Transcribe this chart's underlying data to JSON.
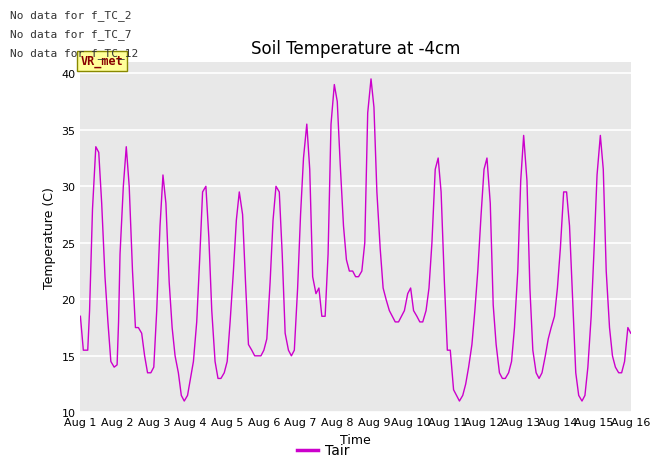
{
  "title": "Soil Temperature at -4cm",
  "xlabel": "Time",
  "ylabel": "Temperature (C)",
  "ylim": [
    10,
    41
  ],
  "yticks": [
    10,
    15,
    20,
    25,
    30,
    35,
    40
  ],
  "xlim": [
    0,
    15
  ],
  "xtick_labels": [
    "Aug 1",
    "Aug 2",
    "Aug 3",
    "Aug 4",
    "Aug 5",
    "Aug 6",
    "Aug 7",
    "Aug 8",
    "Aug 9",
    "Aug 10",
    "Aug 11",
    "Aug 12",
    "Aug 13",
    "Aug 14",
    "Aug 15",
    "Aug 16"
  ],
  "line_color": "#cc00cc",
  "background_color": "#e8e8e8",
  "no_data_labels": [
    "No data for f_TC_2",
    "No data for f_TC_7",
    "No data for f_TC_12"
  ],
  "legend_label": "Tair",
  "vr_met_color": "#880000",
  "vr_met_bg": "#ffff99",
  "vr_met_border": "#888800",
  "x_values": [
    0.0,
    0.04,
    0.08,
    0.2,
    0.25,
    0.33,
    0.42,
    0.5,
    0.58,
    0.67,
    0.75,
    0.83,
    0.92,
    1.0,
    1.04,
    1.08,
    1.17,
    1.25,
    1.33,
    1.42,
    1.5,
    1.58,
    1.67,
    1.75,
    1.83,
    1.92,
    2.0,
    2.08,
    2.17,
    2.25,
    2.33,
    2.42,
    2.5,
    2.58,
    2.67,
    2.75,
    2.83,
    2.92,
    3.0,
    3.08,
    3.17,
    3.25,
    3.33,
    3.42,
    3.5,
    3.58,
    3.67,
    3.75,
    3.83,
    3.92,
    4.0,
    4.08,
    4.17,
    4.25,
    4.33,
    4.42,
    4.5,
    4.58,
    4.67,
    4.75,
    4.83,
    4.92,
    5.0,
    5.08,
    5.17,
    5.25,
    5.33,
    5.42,
    5.5,
    5.58,
    5.67,
    5.75,
    5.83,
    5.92,
    6.0,
    6.08,
    6.17,
    6.25,
    6.33,
    6.42,
    6.5,
    6.58,
    6.67,
    6.75,
    6.83,
    6.92,
    7.0,
    7.08,
    7.17,
    7.25,
    7.33,
    7.42,
    7.5,
    7.58,
    7.67,
    7.75,
    7.83,
    7.92,
    8.0,
    8.08,
    8.17,
    8.25,
    8.33,
    8.42,
    8.5,
    8.58,
    8.67,
    8.75,
    8.83,
    8.92,
    9.0,
    9.08,
    9.17,
    9.25,
    9.33,
    9.42,
    9.5,
    9.58,
    9.67,
    9.75,
    9.83,
    9.92,
    10.0,
    10.08,
    10.17,
    10.25,
    10.33,
    10.42,
    10.5,
    10.58,
    10.67,
    10.75,
    10.83,
    10.92,
    11.0,
    11.08,
    11.17,
    11.25,
    11.33,
    11.42,
    11.5,
    11.58,
    11.67,
    11.75,
    11.83,
    11.92,
    12.0,
    12.08,
    12.17,
    12.25,
    12.33,
    12.42,
    12.5,
    12.58,
    12.67,
    12.75,
    12.83,
    12.92,
    13.0,
    13.08,
    13.17,
    13.25,
    13.33,
    13.42,
    13.5,
    13.58,
    13.67,
    13.75,
    13.83,
    13.92,
    14.0,
    14.08,
    14.17,
    14.25,
    14.33,
    14.42,
    14.5,
    14.58,
    14.67,
    14.75,
    14.83,
    14.92,
    15.0
  ],
  "y_values": [
    18.5,
    17.0,
    15.5,
    15.5,
    19.0,
    28.0,
    33.5,
    33.0,
    28.5,
    22.0,
    18.0,
    14.5,
    14.0,
    14.2,
    18.0,
    24.0,
    30.0,
    33.5,
    30.0,
    22.5,
    17.5,
    17.5,
    17.0,
    15.0,
    13.5,
    13.5,
    14.0,
    19.0,
    26.5,
    31.0,
    28.5,
    21.5,
    17.5,
    15.0,
    13.5,
    11.5,
    11.0,
    11.5,
    13.0,
    14.5,
    18.0,
    23.5,
    29.5,
    30.0,
    25.5,
    19.0,
    14.5,
    13.0,
    13.0,
    13.5,
    14.5,
    18.0,
    22.5,
    27.0,
    29.5,
    27.5,
    21.5,
    16.0,
    15.5,
    15.0,
    15.0,
    15.0,
    15.5,
    16.5,
    21.5,
    27.0,
    30.0,
    29.5,
    24.0,
    17.0,
    15.5,
    15.0,
    15.5,
    21.0,
    27.5,
    32.5,
    35.5,
    31.5,
    22.0,
    20.5,
    21.0,
    18.5,
    18.5,
    24.0,
    35.5,
    39.0,
    37.5,
    32.0,
    26.5,
    23.5,
    22.5,
    22.5,
    22.0,
    22.0,
    22.5,
    25.0,
    36.5,
    39.5,
    37.0,
    29.5,
    24.5,
    21.0,
    20.0,
    19.0,
    18.5,
    18.0,
    18.0,
    18.5,
    19.0,
    20.5,
    21.0,
    19.0,
    18.5,
    18.0,
    18.0,
    19.0,
    21.0,
    25.0,
    31.5,
    32.5,
    29.5,
    21.5,
    15.5,
    15.5,
    12.0,
    11.5,
    11.0,
    11.5,
    12.5,
    14.0,
    16.0,
    19.0,
    22.5,
    27.5,
    31.5,
    32.5,
    28.5,
    19.5,
    16.0,
    13.5,
    13.0,
    13.0,
    13.5,
    14.5,
    17.5,
    22.5,
    30.5,
    34.5,
    30.5,
    21.0,
    15.5,
    13.5,
    13.0,
    13.5,
    15.0,
    16.5,
    17.5,
    18.5,
    21.0,
    24.5,
    29.5,
    29.5,
    26.5,
    19.5,
    13.5,
    11.5,
    11.0,
    11.5,
    14.0,
    18.5,
    24.5,
    31.0,
    34.5,
    31.5,
    22.5,
    17.5,
    15.0,
    14.0,
    13.5,
    13.5,
    14.5,
    17.5,
    17.0
  ]
}
